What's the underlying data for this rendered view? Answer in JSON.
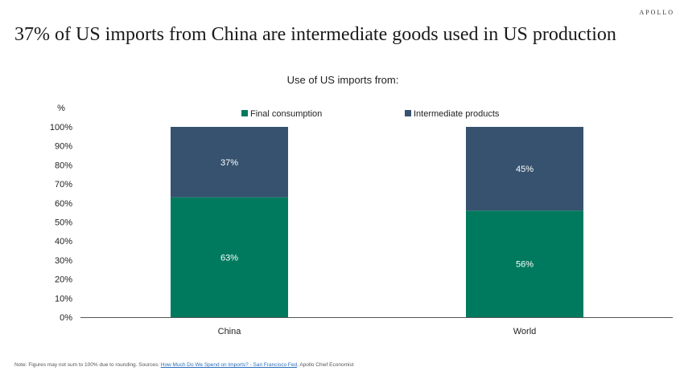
{
  "brand": "APOLLO",
  "headline": "37% of US imports from China are intermediate goods used in US production",
  "chart_data": {
    "type": "bar",
    "stacked": true,
    "title": "Use of US imports from:",
    "ylabel": "%",
    "xlabel": "",
    "ylim": [
      0,
      100
    ],
    "yticks": [
      "0%",
      "10%",
      "20%",
      "30%",
      "40%",
      "50%",
      "60%",
      "70%",
      "80%",
      "90%",
      "100%"
    ],
    "categories": [
      "China",
      "World"
    ],
    "series": [
      {
        "name": "Final consumption",
        "values": [
          63,
          56
        ],
        "labels": [
          "63%",
          "56%"
        ],
        "color": "#007A5E"
      },
      {
        "name": "Intermediate products",
        "values": [
          37,
          45
        ],
        "labels": [
          "37%",
          "45%"
        ],
        "color": "#36526F"
      }
    ],
    "legend_position": "top",
    "grid": false
  },
  "note": {
    "prefix": "Note: Figures may not sum to 100% due to rounding. Sources: ",
    "link": "How Much Do We Spend on Imports? - San Francisco Fed",
    "suffix": ", Apollo Chief Economist"
  }
}
